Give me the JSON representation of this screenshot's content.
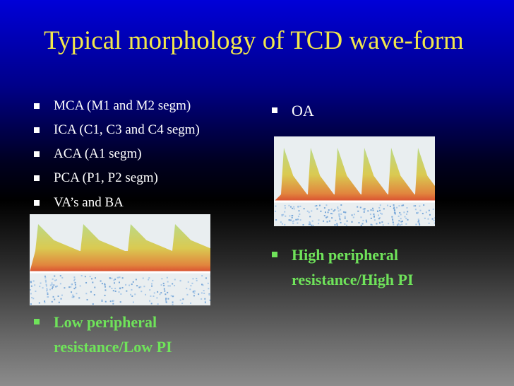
{
  "slide": {
    "title": "Typical morphology of TCD wave-form",
    "left_bullets": [
      "MCA (M1 and M2 segm)",
      "ICA (C1, C3 and C4 segm)",
      "ACA (A1 segm)",
      "PCA (P1, P2 segm)",
      "VA’s and BA"
    ],
    "left_note": "Low peripheral resistance/Low PI",
    "right_bullet": "OA",
    "right_note": "High peripheral resistance/High PI"
  }
}
